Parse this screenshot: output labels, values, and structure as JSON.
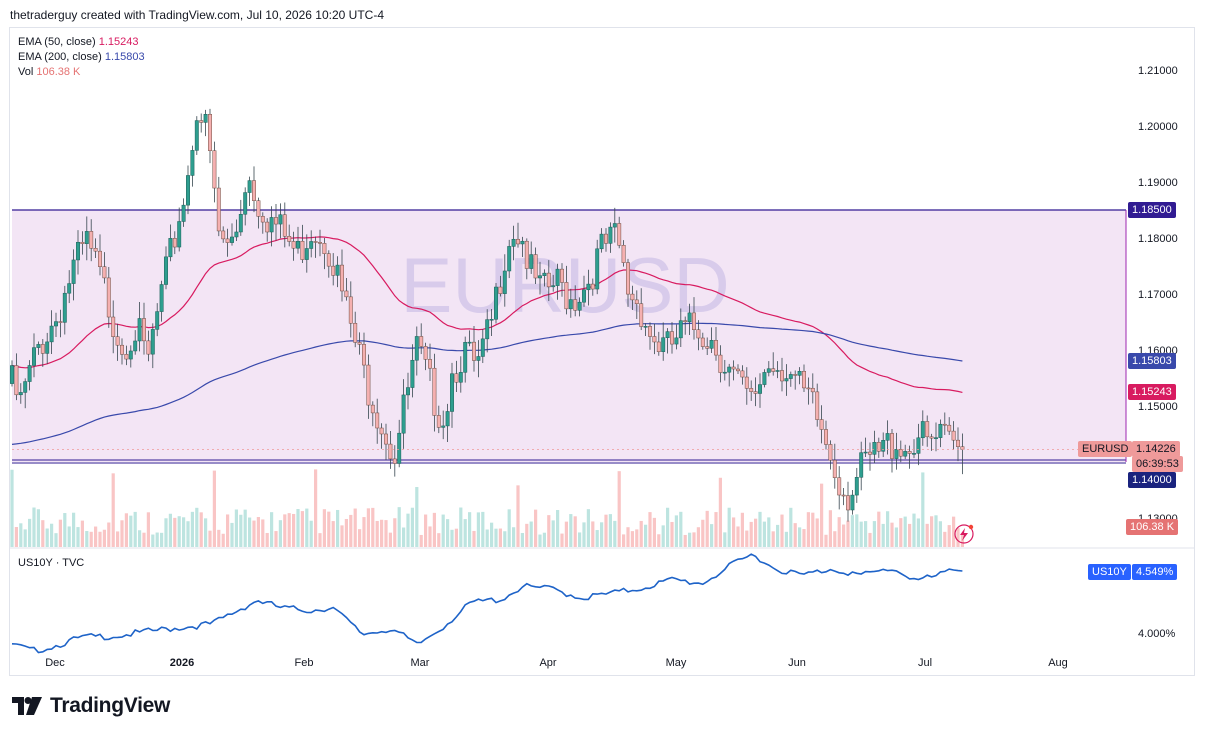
{
  "header": {
    "attribution": "thetraderguy created with TradingView.com, Jul 10, 2026 10:20 UTC-4"
  },
  "watermark": "EURUSD",
  "legend": {
    "ema50_label": "EMA (50, close)",
    "ema50_value": "1.15243",
    "ema200_label": "EMA (200, close)",
    "ema200_value": "1.15803",
    "vol_label": "Vol",
    "vol_value": "106.38 K"
  },
  "sub_legend": "US10Y · TVC",
  "tags": {
    "resistance": "1.18500",
    "ema200": "1.15803",
    "ema50": "1.15243",
    "symbol": "EURUSD",
    "price": "1.14226",
    "countdown": "06:39:53",
    "support": "1.14000",
    "volume": "106.38 K",
    "us10y_symbol": "US10Y",
    "us10y_value": "4.549%"
  },
  "colors": {
    "up": "#26a69a",
    "down": "#ef5350",
    "zone_fill": "#f3e5f5",
    "zone_line": "#311b92",
    "ema50": "#d81b60",
    "ema200": "#3949ab",
    "us10y": "#2962ff"
  },
  "footer": {
    "brand": "TradingView"
  },
  "chart_data": [
    {
      "type": "candlestick",
      "symbol": "EURUSD",
      "y_ticks": [
        "1.21000",
        "1.20000",
        "1.19000",
        "1.18000",
        "1.17000",
        "1.16000",
        "1.15000",
        "1.13000"
      ],
      "ylim": [
        1.13,
        1.212
      ],
      "x_labels": [
        "Dec",
        "2026",
        "Feb",
        "Mar",
        "Apr",
        "May",
        "Jun",
        "Jul",
        "Aug"
      ],
      "last_price": 1.14226,
      "horizontal_levels": [
        1.185,
        1.14
      ],
      "ema50_last": 1.15243,
      "ema200_last": 1.15803,
      "volume_last": "106.38 K"
    },
    {
      "type": "line",
      "symbol": "US10Y",
      "y_ticks": [
        "4.000%"
      ],
      "last_value": 4.549
    }
  ]
}
